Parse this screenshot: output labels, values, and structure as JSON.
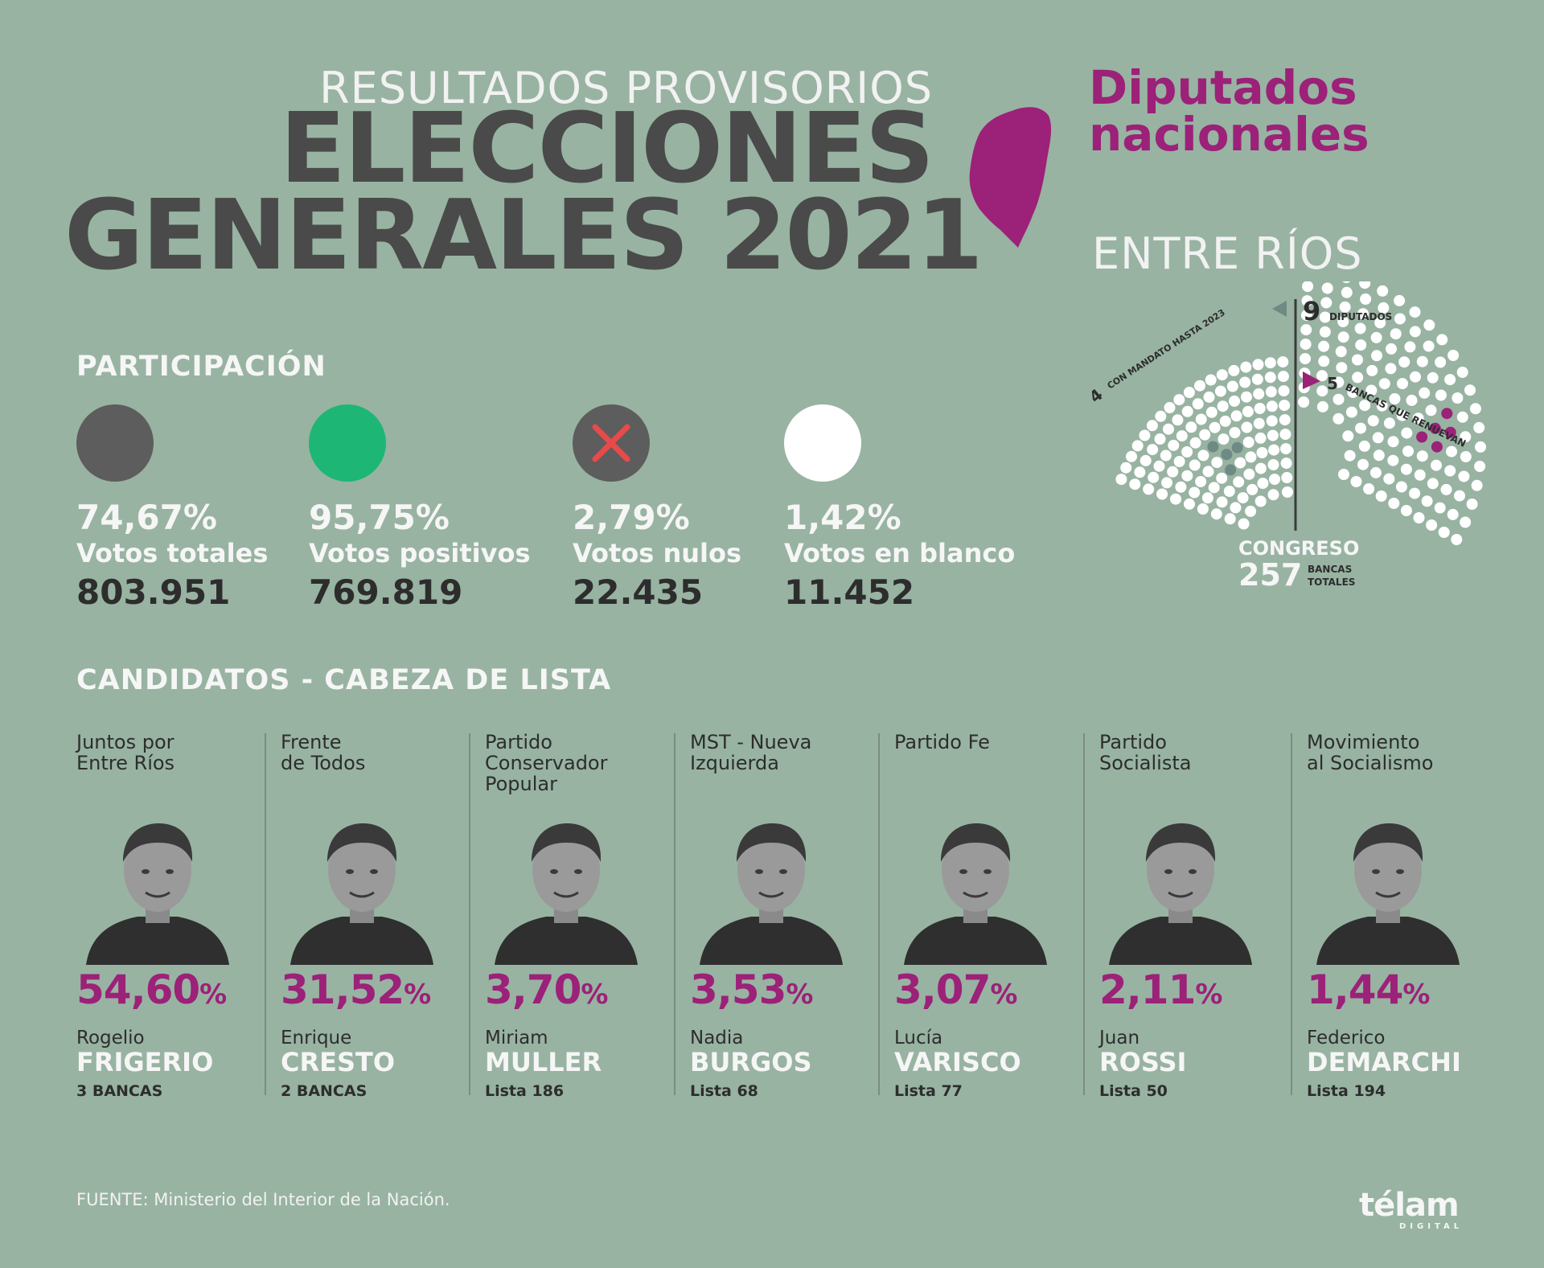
{
  "header": {
    "subtitle": "RESULTADOS PROVISORIOS",
    "title_line1": "ELECCIONES",
    "title_line2": "GENERALES 2021",
    "chamber_line1": "Diputados",
    "chamber_line2": "nacionales",
    "region": "ENTRE RÍOS"
  },
  "parliament": {
    "total_number": "9",
    "total_label": "DIPUTADOS",
    "mandate_number": "4",
    "mandate_label": "CON MANDATO HASTA 2023",
    "renew_number": "5",
    "renew_label": "BANCAS QUE RENUEVAN",
    "congress_label": "CONGRESO",
    "congress_number": "257",
    "congress_unit_line1": "BANCAS",
    "congress_unit_line2": "TOTALES",
    "colors": {
      "seat": "#ffffff",
      "mandate": "#6f8a84",
      "renew": "#9c2178",
      "marker_gray": "#6f8a84",
      "marker_magenta": "#9c2178"
    }
  },
  "participation": {
    "heading": "PARTICIPACIÓN",
    "items": [
      {
        "icon": "dark-gray-circle-icon",
        "color": "#5d5d5d",
        "pct": "74,67%",
        "label": "Votos totales",
        "value": "803.951"
      },
      {
        "icon": "green-circle-icon",
        "color": "#1db675",
        "pct": "95,75%",
        "label": "Votos positivos",
        "value": "769.819"
      },
      {
        "icon": "null-x-icon",
        "color": "#5d5d5d",
        "mark_color": "#e84a4a",
        "pct": "2,79%",
        "label": "Votos nulos",
        "value": "22.435"
      },
      {
        "icon": "white-circle-icon",
        "color": "#ffffff",
        "pct": "1,42%",
        "label": "Votos en blanco",
        "value": "11.452"
      }
    ]
  },
  "candidates": {
    "heading": "CANDIDATOS - CABEZA DE LISTA",
    "items": [
      {
        "party_line1": "Juntos por",
        "party_line2": "Entre Ríos",
        "party_line3": "",
        "pct": "54,60",
        "pct_sign": "%",
        "first_name": "Rogelio",
        "last_name": "FRIGERIO",
        "seats": "3 BANCAS",
        "photo": "portrait-icon"
      },
      {
        "party_line1": "Frente",
        "party_line2": "de Todos",
        "party_line3": "",
        "pct": "31,52",
        "pct_sign": "%",
        "first_name": "Enrique",
        "last_name": "CRESTO",
        "seats": "2 BANCAS",
        "photo": "portrait-icon"
      },
      {
        "party_line1": "Partido",
        "party_line2": "Conservador",
        "party_line3": "Popular",
        "pct": "3,70",
        "pct_sign": "%",
        "first_name": "Miriam",
        "last_name": "MULLER",
        "seats": "Lista 186",
        "photo": "portrait-icon"
      },
      {
        "party_line1": "MST - Nueva",
        "party_line2": "Izquierda",
        "party_line3": "",
        "pct": "3,53",
        "pct_sign": "%",
        "first_name": "Nadia",
        "last_name": "BURGOS",
        "seats": "Lista 68",
        "photo": "portrait-icon"
      },
      {
        "party_line1": "Partido Fe",
        "party_line2": "",
        "party_line3": "",
        "pct": "3,07",
        "pct_sign": "%",
        "first_name": "Lucía",
        "last_name": "VARISCO",
        "seats": "Lista 77",
        "photo": "portrait-icon"
      },
      {
        "party_line1": "Partido",
        "party_line2": "Socialista",
        "party_line3": "",
        "pct": "2,11",
        "pct_sign": "%",
        "first_name": "Juan",
        "last_name": "ROSSI",
        "seats": "Lista 50",
        "photo": "portrait-icon"
      },
      {
        "party_line1": "Movimiento",
        "party_line2": "al Socialismo",
        "party_line3": "",
        "pct": "1,44",
        "pct_sign": "%",
        "first_name": "Federico",
        "last_name": "DEMARCHI",
        "seats": "Lista 194",
        "photo": "portrait-icon"
      }
    ]
  },
  "footer": {
    "source": "FUENTE: Ministerio del Interior de la Nación.",
    "logo": "télam",
    "logo_sub": "DIGITAL"
  }
}
